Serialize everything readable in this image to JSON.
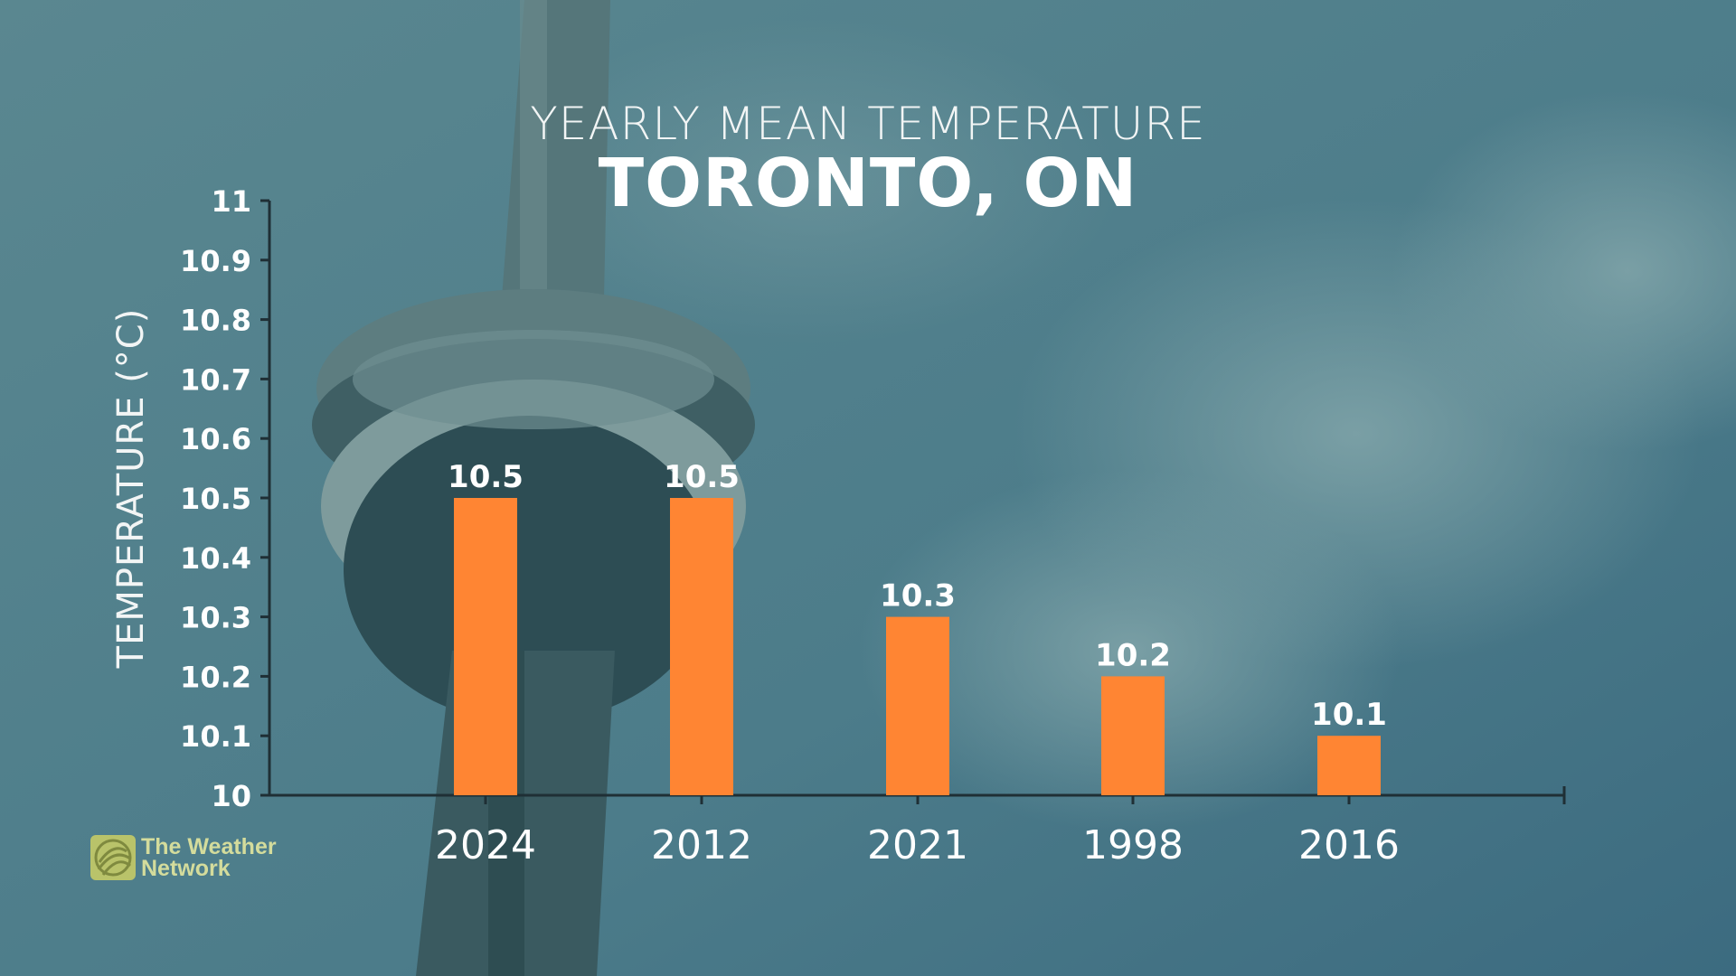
{
  "header": {
    "title": "YEARLY MEAN TEMPERATURE",
    "subtitle": "TORONTO, ON"
  },
  "branding": {
    "logo_line1": "The Weather",
    "logo_line2": "Network",
    "logo_icon": "globe-icon"
  },
  "colors": {
    "bar": "#ff8533",
    "overlay": "#4f7f8b",
    "axis": "#1f2f35",
    "text": "#ffffff"
  },
  "chart_data": {
    "type": "bar",
    "title": "YEARLY MEAN TEMPERATURE",
    "subtitle": "TORONTO, ON",
    "xlabel": "",
    "ylabel": "TEMPERATURE (°C)",
    "categories": [
      "2024",
      "2012",
      "2021",
      "1998",
      "2016"
    ],
    "values": [
      10.5,
      10.5,
      10.3,
      10.2,
      10.1
    ],
    "data_labels": [
      "10.5",
      "10.5",
      "10.3",
      "10.2",
      "10.1"
    ],
    "ylim": [
      10,
      11
    ],
    "yticks": [
      "10",
      "10.1",
      "10.2",
      "10.3",
      "10.4",
      "10.5",
      "10.6",
      "10.7",
      "10.8",
      "10.9",
      "11"
    ],
    "grid": false,
    "legend": "none"
  }
}
